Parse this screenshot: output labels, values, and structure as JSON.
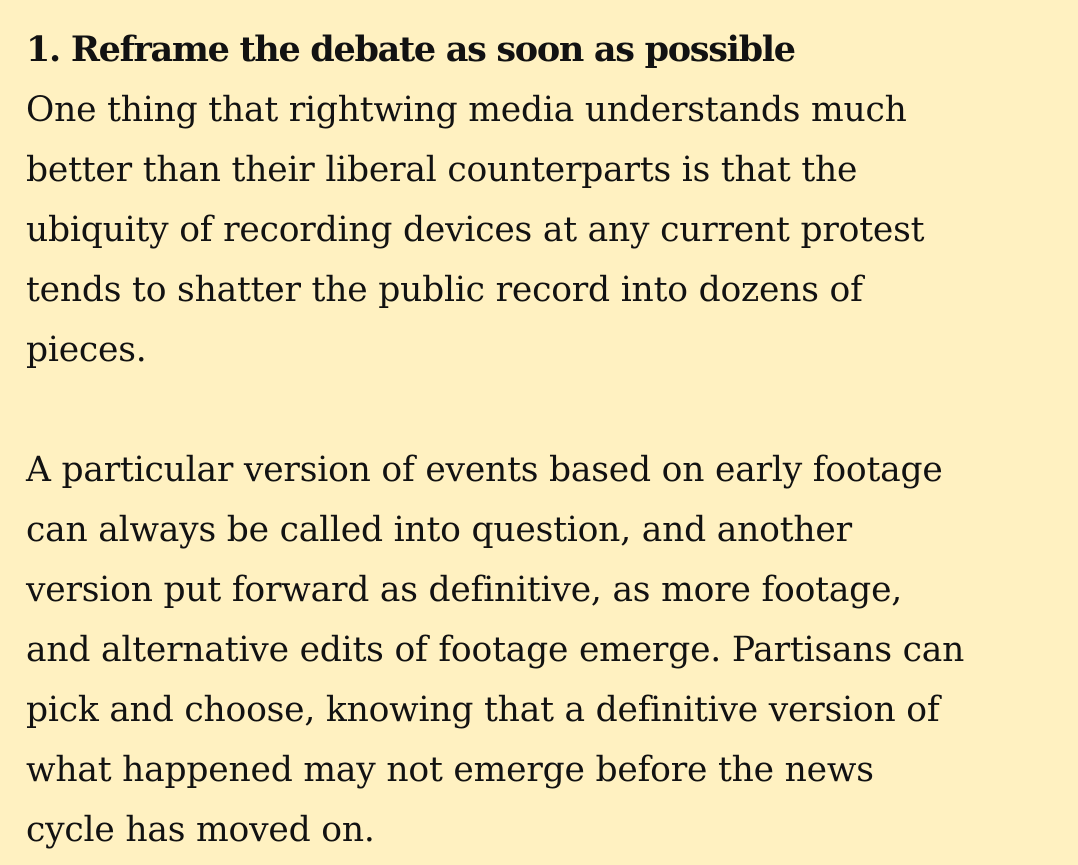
{
  "article": {
    "heading": "1. Reframe the debate as soon as possible",
    "paragraphs": [
      {
        "lines": [
          "One thing that rightwing media understands much",
          "better than their liberal counterparts is that the",
          "ubiquity of recording devices at any current protest",
          "tends to shatter the public record into dozens of",
          "pieces."
        ]
      },
      {
        "lines": [
          "A particular version of events based on early footage",
          "can always be called into question, and another",
          "version put forward as definitive, as more footage,",
          "and alternative edits of footage emerge. Partisans can",
          "pick and choose, knowing that a definitive version of",
          "what happened may not emerge before the news",
          "cycle has moved on."
        ]
      }
    ]
  },
  "colors": {
    "background": "#fff1c1",
    "text": "#121212"
  }
}
